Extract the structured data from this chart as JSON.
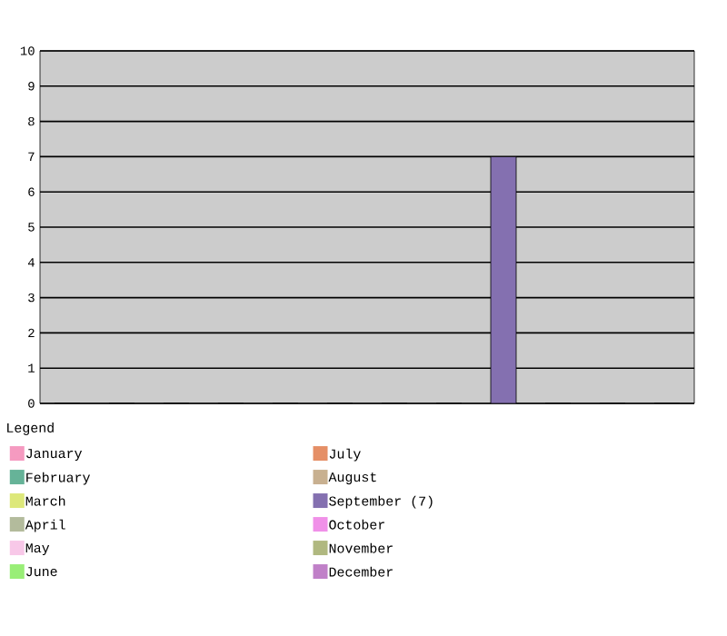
{
  "chart_data": {
    "type": "bar",
    "legend_title": "Legend",
    "categories": [
      null
    ],
    "series": [
      {
        "name": "January",
        "color": "#f59ac0",
        "values": [
          0
        ]
      },
      {
        "name": "February",
        "color": "#66b398",
        "values": [
          0
        ]
      },
      {
        "name": "March",
        "color": "#dde87a",
        "values": [
          0
        ]
      },
      {
        "name": "April",
        "color": "#b3bb9c",
        "values": [
          0
        ]
      },
      {
        "name": "May",
        "color": "#f8c8e8",
        "values": [
          0
        ]
      },
      {
        "name": "June",
        "color": "#99ee77",
        "values": [
          0
        ]
      },
      {
        "name": "July",
        "color": "#e58f66",
        "values": [
          0
        ]
      },
      {
        "name": "August",
        "color": "#c8b090",
        "values": [
          0
        ]
      },
      {
        "name": "September (7)",
        "color": "#8470b0",
        "values": [
          7
        ]
      },
      {
        "name": "October",
        "color": "#f090e8",
        "values": [
          0
        ]
      },
      {
        "name": "November",
        "color": "#b0b880",
        "values": [
          0
        ]
      },
      {
        "name": "December",
        "color": "#c080c8",
        "values": [
          0
        ]
      }
    ],
    "ylim": [
      0,
      10
    ],
    "yticks": [
      0,
      1,
      2,
      3,
      4,
      5,
      6,
      7,
      8,
      9,
      10
    ],
    "grid": "y",
    "legend": "bottom",
    "tick_labels": "y"
  }
}
